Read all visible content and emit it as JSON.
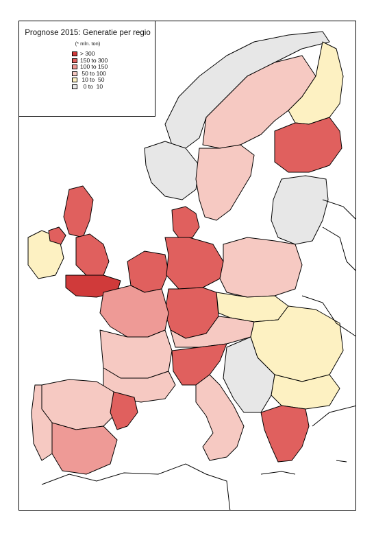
{
  "legend": {
    "title": "Prognose 2015: Generatie per regio",
    "subtitle": "(* mln. ton)",
    "classes": [
      {
        "label": "> 300",
        "color": "#d03a3a"
      },
      {
        "label": "150 to 300",
        "color": "#e0605e"
      },
      {
        "label": "100 to 150",
        "color": "#ee9a96"
      },
      {
        "label": " 50 to 100",
        "color": "#f6c9c2"
      },
      {
        "label": " 10 to  50",
        "color": "#fdf1c2"
      },
      {
        "label": "  0 to  10",
        "color": "#e7e7e7"
      }
    ]
  },
  "map": {
    "land_outside_color": "#ffffff",
    "border_color": "#000000",
    "regions": [
      {
        "name": "iceland-norway-coast",
        "class": 5
      },
      {
        "name": "norway-south",
        "class": 5
      },
      {
        "name": "sweden-north",
        "class": 3
      },
      {
        "name": "sweden-south",
        "class": 3
      },
      {
        "name": "finland-north",
        "class": 4
      },
      {
        "name": "finland-south",
        "class": 1
      },
      {
        "name": "denmark",
        "class": 1
      },
      {
        "name": "baltics",
        "class": 5
      },
      {
        "name": "scotland",
        "class": 1
      },
      {
        "name": "england-north",
        "class": 1
      },
      {
        "name": "england-south",
        "class": 0
      },
      {
        "name": "ireland",
        "class": 4
      },
      {
        "name": "northern-ireland",
        "class": 1
      },
      {
        "name": "benelux",
        "class": 1
      },
      {
        "name": "germany-north",
        "class": 1
      },
      {
        "name": "germany-south",
        "class": 1
      },
      {
        "name": "poland",
        "class": 3
      },
      {
        "name": "czech-slovakia",
        "class": 4
      },
      {
        "name": "france-north",
        "class": 2
      },
      {
        "name": "france-centre",
        "class": 3
      },
      {
        "name": "france-south",
        "class": 3
      },
      {
        "name": "switzerland-austria",
        "class": 3
      },
      {
        "name": "italy-north",
        "class": 1
      },
      {
        "name": "italy-south",
        "class": 3
      },
      {
        "name": "hungary-romania",
        "class": 4
      },
      {
        "name": "balkans-west",
        "class": 5
      },
      {
        "name": "bulgaria",
        "class": 4
      },
      {
        "name": "greece",
        "class": 1
      },
      {
        "name": "spain-north",
        "class": 3
      },
      {
        "name": "spain-south",
        "class": 2
      },
      {
        "name": "catalonia",
        "class": 1
      },
      {
        "name": "portugal",
        "class": 3
      }
    ]
  }
}
